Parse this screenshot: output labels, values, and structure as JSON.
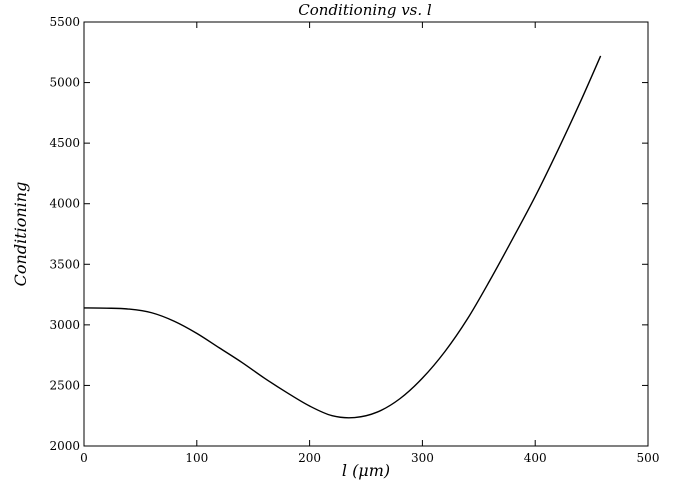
{
  "chart_data": {
    "type": "line",
    "title": "Conditioning vs. l",
    "xlabel": "l (μm)",
    "ylabel": "Conditioning",
    "xlim": [
      0,
      500
    ],
    "ylim": [
      2000,
      5500
    ],
    "xticks": [
      0,
      100,
      200,
      300,
      400,
      500
    ],
    "yticks": [
      2000,
      2500,
      3000,
      3500,
      4000,
      4500,
      5000,
      5500
    ],
    "grid": false,
    "series": [
      {
        "color": "#000000",
        "x": [
          0,
          20,
          40,
          60,
          80,
          100,
          120,
          140,
          160,
          180,
          200,
          220,
          240,
          260,
          280,
          300,
          320,
          340,
          360,
          380,
          400,
          420,
          440,
          458
        ],
        "y": [
          3140,
          3138,
          3130,
          3100,
          3030,
          2930,
          2810,
          2690,
          2560,
          2440,
          2330,
          2250,
          2235,
          2280,
          2390,
          2560,
          2780,
          3050,
          3370,
          3710,
          4060,
          4440,
          4840,
          5220
        ]
      }
    ]
  }
}
